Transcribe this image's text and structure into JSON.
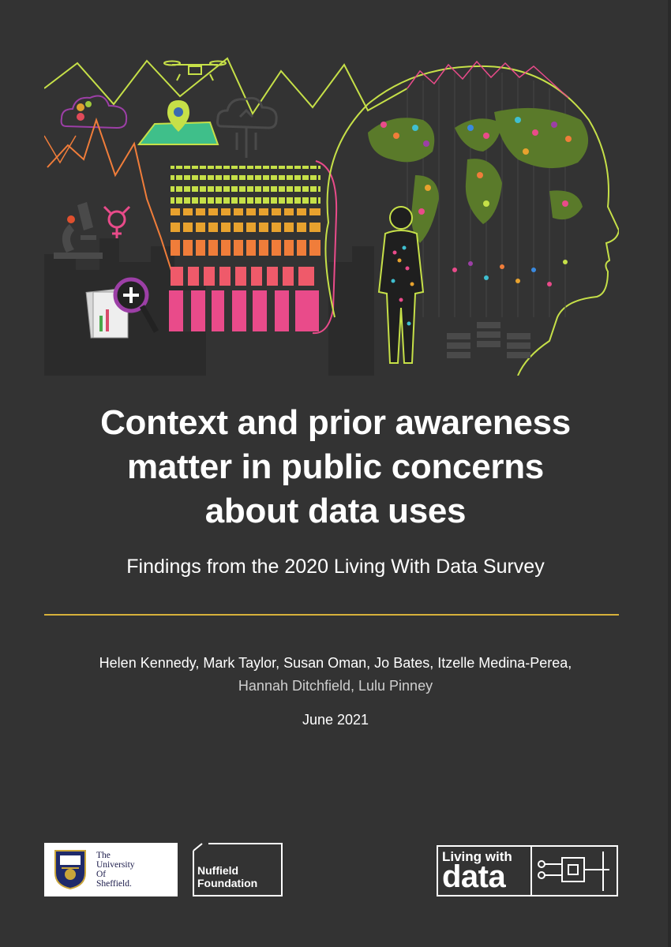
{
  "cover": {
    "title_lines": [
      "Context and prior awareness",
      "matter in public concerns",
      "about data uses"
    ],
    "subtitle": "Findings from the 2020 Living With Data Survey",
    "authors_line1": "Helen Kennedy, Mark Taylor, Susan Oman, Jo Bates, Itzelle Medina-Perea,",
    "authors_line2": "Hannah Ditchfield, Lulu Pinney",
    "date": "June 2021"
  },
  "logos": {
    "sheffield_lines": [
      "The",
      "University",
      "Of",
      "Sheffield."
    ],
    "nuffield_lines": [
      "Nuffield",
      "Foundation"
    ],
    "lwd_line1": "Living with",
    "lwd_line2": "data"
  },
  "colors": {
    "background": "#333333",
    "accent_rule": "#d7b13b",
    "lime": "#c6e048",
    "pink": "#e94b8a",
    "orange": "#f07d3a",
    "map_green": "#5a7a2a"
  },
  "illustration": {
    "icons": [
      "drone-icon",
      "cloud-gears-icon",
      "map-pin-icon",
      "cloud-upload-icon",
      "microscope-icon",
      "gender-symbol-icon",
      "magnifier-chart-icon",
      "human-head-world-map-icon",
      "circuit-person-icon",
      "server-icon"
    ]
  }
}
